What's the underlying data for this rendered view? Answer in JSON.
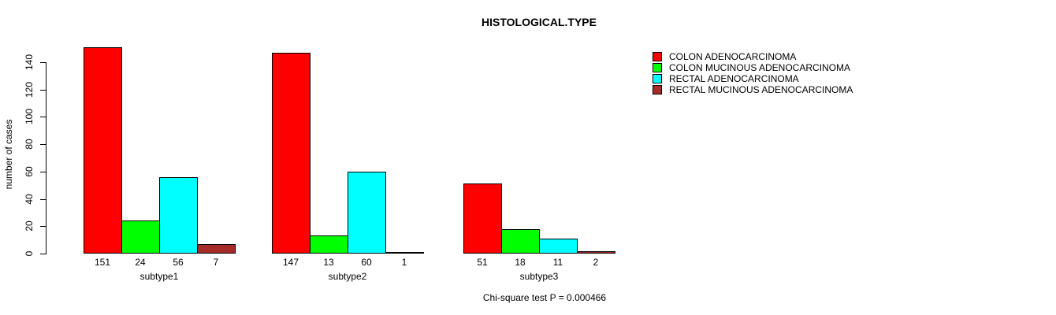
{
  "chart_data": {
    "type": "bar",
    "title": "HISTOLOGICAL.TYPE",
    "ylabel": "number of cases",
    "xlabel": "",
    "footnote": "Chi-square test P = 0.000466",
    "categories": [
      "subtype1",
      "subtype2",
      "subtype3"
    ],
    "series": [
      {
        "name": "COLON ADENOCARCINOMA",
        "color": "#FF0000",
        "values": [
          151,
          147,
          51
        ]
      },
      {
        "name": "COLON MUCINOUS ADENOCARCINOMA",
        "color": "#00FF00",
        "values": [
          24,
          13,
          18
        ]
      },
      {
        "name": "RECTAL ADENOCARCINOMA",
        "color": "#00FFFF",
        "values": [
          56,
          60,
          11
        ]
      },
      {
        "name": "RECTAL MUCINOUS ADENOCARCINOMA",
        "color": "#A52A2A",
        "values": [
          7,
          1,
          2
        ]
      }
    ],
    "bar_value_labels": [
      [
        151,
        24,
        56,
        7
      ],
      [
        147,
        13,
        60,
        1
      ],
      [
        51,
        18,
        11,
        2
      ]
    ],
    "ylim": [
      0,
      140
    ],
    "yticks": [
      0,
      20,
      40,
      60,
      80,
      100,
      120,
      140
    ],
    "legend_position": "topright",
    "grid": false,
    "colors": {
      "background": "#FFFFFF",
      "axis": "#000000",
      "bar_border": "#000000",
      "text": "#000000"
    }
  }
}
